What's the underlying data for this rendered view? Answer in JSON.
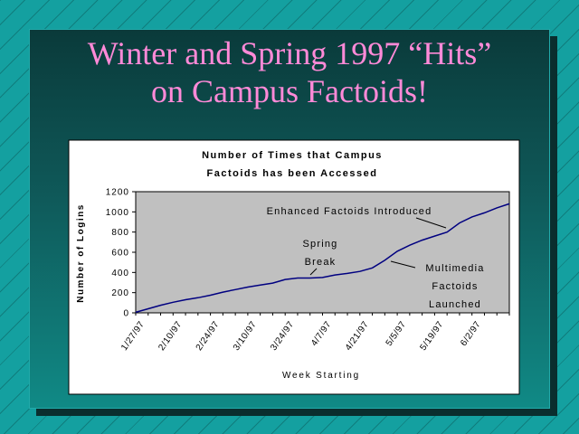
{
  "slide": {
    "title_line1": "Winter and Spring 1997 “Hits”",
    "title_line2": "on Campus Factoids!"
  },
  "colors": {
    "title": "#ff8ad8",
    "background": "#14a0a0",
    "plot_area": "#c0c0c0",
    "line": "#000080"
  },
  "chart_data": {
    "type": "line",
    "title_line1": "Number of Times that Campus",
    "title_line2": "Factoids has been Accessed",
    "xlabel": "Week Starting",
    "ylabel": "Number of Logins",
    "ylim": [
      0,
      1200
    ],
    "yticks": [
      "0",
      "200",
      "400",
      "600",
      "800",
      "1000",
      "1200"
    ],
    "yticks_values": [
      0,
      200,
      400,
      600,
      800,
      1000,
      1200
    ],
    "x_labels": [
      "1/27/97",
      "2/10/97",
      "2/24/97",
      "3/10/97",
      "3/24/97",
      "4/7/97",
      "4/21/97",
      "5/5/97",
      "5/19/97",
      "6/2/97"
    ],
    "grid": false,
    "series": [
      {
        "values": [
          5,
          40,
          75,
          105,
          130,
          150,
          175,
          205,
          230,
          255,
          275,
          295,
          330,
          345,
          345,
          350,
          375,
          390,
          410,
          445,
          520,
          610,
          670,
          720,
          760,
          800,
          890,
          950,
          990,
          1040,
          1080
        ]
      }
    ],
    "annotations": [
      {
        "text": "Enhanced Factoids Introduced"
      },
      {
        "text": "Spring",
        "text2": "Break"
      },
      {
        "text": "Multimedia",
        "text2": "Factoids",
        "text3": "Launched"
      }
    ]
  }
}
